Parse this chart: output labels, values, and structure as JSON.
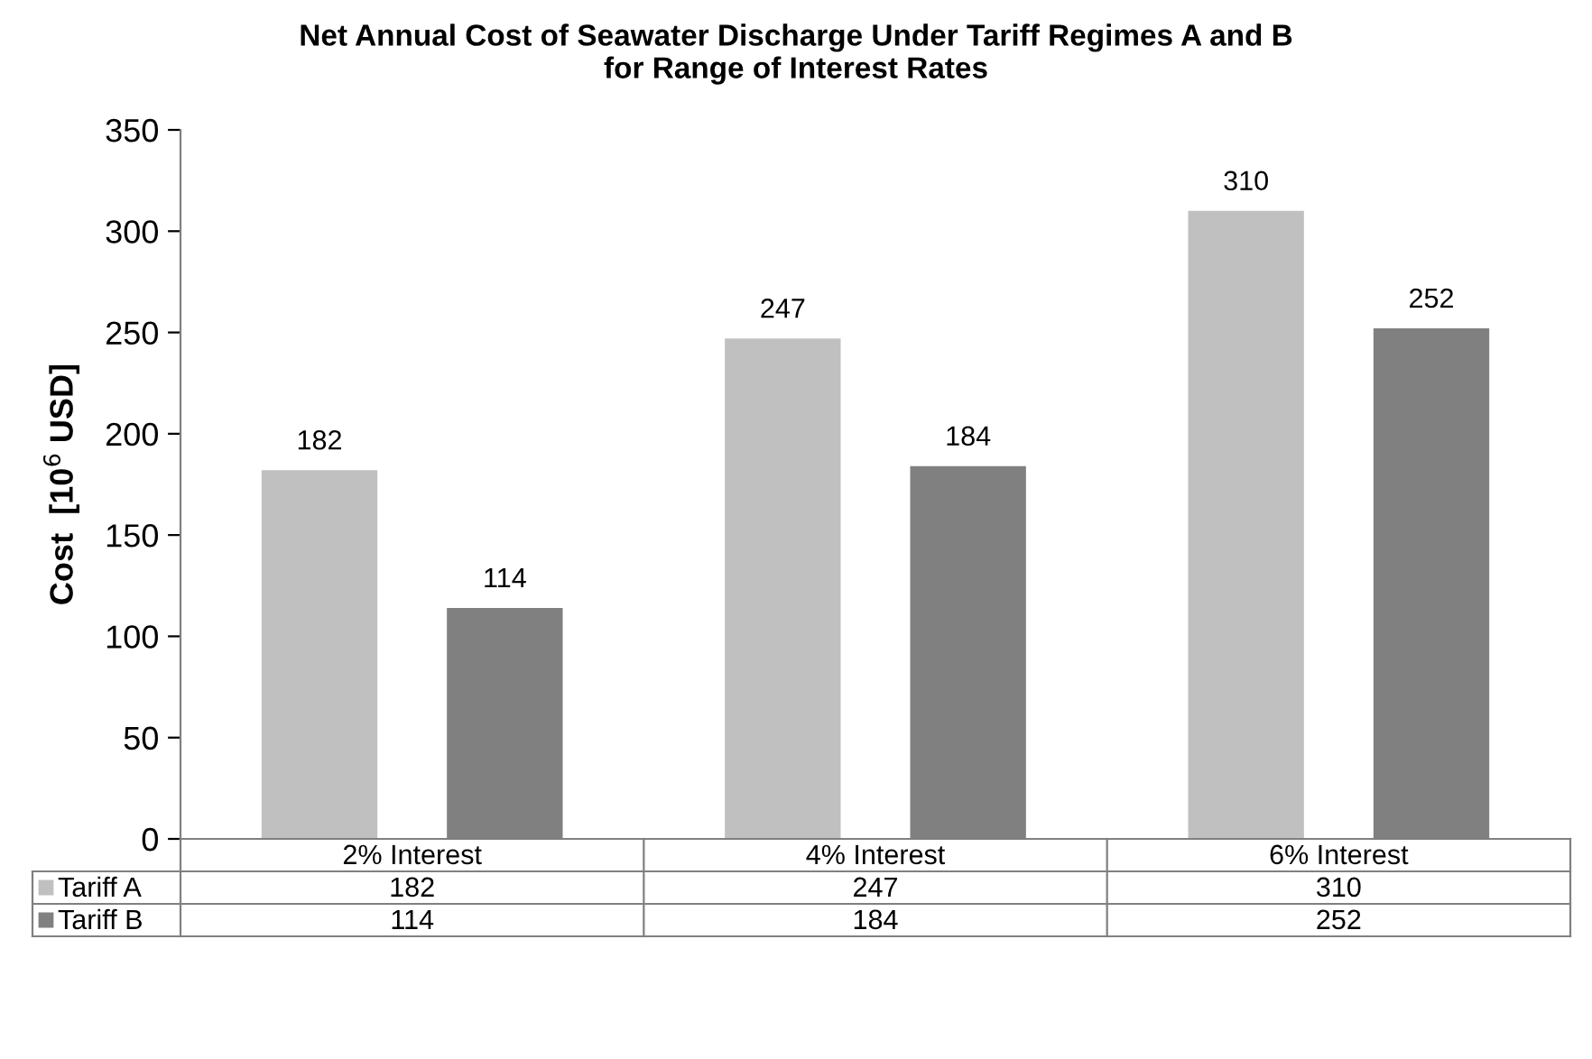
{
  "chart_data": {
    "type": "bar",
    "title": "Net Annual Cost of Seawater Discharge Under Tariff Regimes A and B\nfor Range of Interest Rates",
    "ylabel": "Cost  [10$^{6}$ USD]",
    "categories": [
      "2% Interest",
      "4% Interest",
      "6% Interest"
    ],
    "series": [
      {
        "name": "Tariff A",
        "color": "#c0c0c0",
        "values": [
          182,
          247,
          310
        ],
        "value_labels": [
          "182",
          "247",
          "310"
        ]
      },
      {
        "name": "Tariff B",
        "color": "#808080",
        "values": [
          114,
          184,
          252
        ],
        "value_labels": [
          "114",
          "184",
          "252"
        ]
      }
    ],
    "ylim": [
      0,
      350
    ],
    "yticks": [
      0,
      50,
      100,
      150,
      200,
      250,
      300,
      350
    ],
    "annotations": [
      "182",
      "247",
      "310",
      "114",
      "184",
      "252"
    ],
    "grid": false,
    "legend": "bottom"
  }
}
